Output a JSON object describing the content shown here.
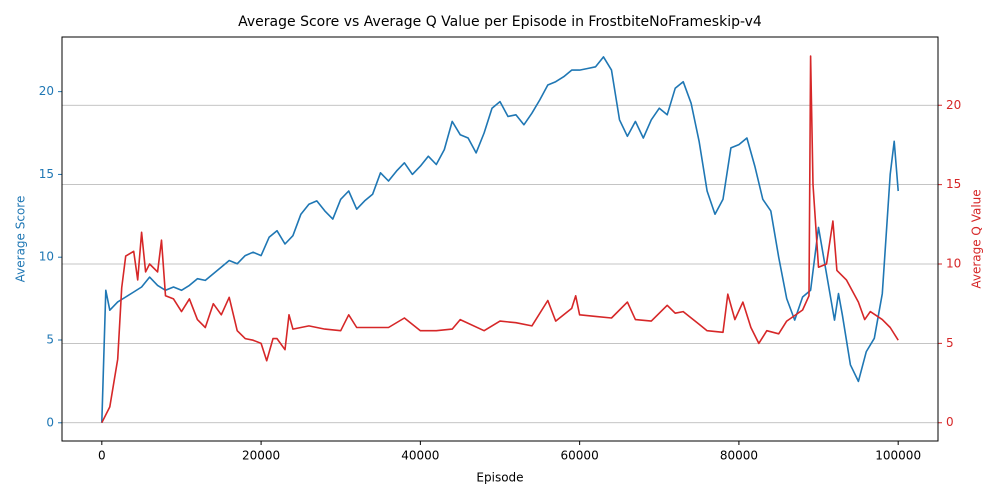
{
  "chart_data": {
    "type": "line",
    "title": "Average Score vs Average Q Value per Episode in FrostbiteNoFrameskip-v4",
    "xlabel": "Episode",
    "ylabel": "Average Score",
    "y2label": "Average Q Value",
    "xlim": [
      -5000,
      105000
    ],
    "xticks": [
      0,
      20000,
      40000,
      60000,
      80000,
      100000
    ],
    "ylim": [
      -1.1,
      23.3
    ],
    "yticks": [
      0,
      5,
      10,
      15,
      20
    ],
    "y2lim": [
      -1.15,
      24.3
    ],
    "y2ticks": [
      0,
      5,
      10,
      15,
      20
    ],
    "grid": "y2",
    "series": [
      {
        "color": "#1f77b4",
        "x": [
          0,
          500,
          1000,
          2000,
          3000,
          4000,
          5000,
          6000,
          7000,
          8000,
          9000,
          10000,
          11000,
          12000,
          13000,
          14000,
          15000,
          16000,
          17000,
          18000,
          19000,
          20000,
          21000,
          22000,
          23000,
          24000,
          25000,
          26000,
          27000,
          28000,
          29000,
          30000,
          31000,
          32000,
          33000,
          34000,
          35000,
          36000,
          37000,
          38000,
          39000,
          40000,
          41000,
          42000,
          43000,
          44000,
          45000,
          46000,
          47000,
          48000,
          49000,
          50000,
          51000,
          52000,
          53000,
          54000,
          55000,
          56000,
          57000,
          58000,
          59000,
          60000,
          61000,
          62000,
          63000,
          64000,
          65000,
          66000,
          67000,
          68000,
          69000,
          70000,
          71000,
          72000,
          73000,
          74000,
          75000,
          76000,
          77000,
          78000,
          79000,
          80000,
          81000,
          82000,
          83000,
          84000,
          85000,
          86000,
          87000,
          88000,
          89000,
          90000,
          91000,
          92000,
          92500,
          93000,
          94000,
          95000,
          96000,
          97000,
          98000,
          99000,
          99500,
          100000
        ],
        "values": [
          0,
          8,
          6.8,
          7.3,
          7.6,
          7.9,
          8.2,
          8.8,
          8.3,
          8.0,
          8.2,
          8.0,
          8.3,
          8.7,
          8.6,
          9.0,
          9.4,
          9.8,
          9.6,
          10.1,
          10.3,
          10.1,
          11.2,
          11.6,
          10.8,
          11.3,
          12.6,
          13.2,
          13.4,
          12.8,
          12.3,
          13.5,
          14.0,
          12.9,
          13.4,
          13.8,
          15.1,
          14.6,
          15.2,
          15.7,
          15.0,
          15.5,
          16.1,
          15.6,
          16.5,
          18.2,
          17.4,
          17.2,
          16.3,
          17.5,
          19.0,
          19.4,
          18.5,
          18.6,
          18.0,
          18.7,
          19.5,
          20.4,
          20.6,
          20.9,
          21.3,
          21.3,
          21.4,
          21.5,
          22.1,
          21.3,
          18.3,
          17.3,
          18.2,
          17.2,
          18.3,
          19.0,
          18.6,
          20.2,
          20.6,
          19.3,
          17.0,
          14.0,
          12.6,
          13.5,
          16.6,
          16.8,
          17.2,
          15.5,
          13.5,
          12.8,
          10.0,
          7.5,
          6.2,
          7.6,
          8.0,
          11.8,
          9.0,
          6.2,
          7.8,
          6.5,
          3.5,
          2.5,
          4.3,
          5.1,
          7.8,
          15.0,
          17.0,
          14.0
        ]
      },
      {
        "color": "#d62728",
        "axis": "y2",
        "x": [
          0,
          1000,
          2000,
          2500,
          3000,
          4000,
          4500,
          5000,
          5500,
          6000,
          7000,
          7500,
          8000,
          9000,
          10000,
          11000,
          12000,
          13000,
          14000,
          15000,
          16000,
          17000,
          18000,
          19000,
          20000,
          20700,
          21500,
          22000,
          23000,
          23500,
          24000,
          26000,
          28000,
          30000,
          31000,
          32000,
          34000,
          36000,
          38000,
          40000,
          42000,
          44000,
          45000,
          48000,
          50000,
          52000,
          54000,
          56000,
          57000,
          59000,
          59500,
          60000,
          62000,
          64000,
          66000,
          67000,
          69000,
          71000,
          72000,
          73000,
          75000,
          76000,
          78000,
          78600,
          79500,
          80500,
          81500,
          82500,
          83500,
          85000,
          86000,
          88000,
          88800,
          89000,
          89300,
          90000,
          91000,
          91800,
          92300,
          93500,
          95000,
          95800,
          96500,
          98000,
          99000,
          100000
        ],
        "values": [
          0,
          1.0,
          4.0,
          8.5,
          10.5,
          10.8,
          9.0,
          12.0,
          9.5,
          10.0,
          9.5,
          11.5,
          8.0,
          7.8,
          7.0,
          7.8,
          6.5,
          6.0,
          7.5,
          6.8,
          7.9,
          5.8,
          5.3,
          5.2,
          5.0,
          3.9,
          5.3,
          5.3,
          4.6,
          6.8,
          5.9,
          6.1,
          5.9,
          5.8,
          6.8,
          6.0,
          6.0,
          6.0,
          6.6,
          5.8,
          5.8,
          5.9,
          6.5,
          5.8,
          6.4,
          6.3,
          6.1,
          7.7,
          6.4,
          7.2,
          8.0,
          6.8,
          6.7,
          6.6,
          7.6,
          6.5,
          6.4,
          7.4,
          6.9,
          7.0,
          6.2,
          5.8,
          5.7,
          8.1,
          6.5,
          7.6,
          6.0,
          5.0,
          5.8,
          5.6,
          6.4,
          7.1,
          8.0,
          23.1,
          15.0,
          9.8,
          10.0,
          12.7,
          9.6,
          9.0,
          7.6,
          6.5,
          7.0,
          6.5,
          6.0,
          5.2
        ]
      }
    ]
  }
}
